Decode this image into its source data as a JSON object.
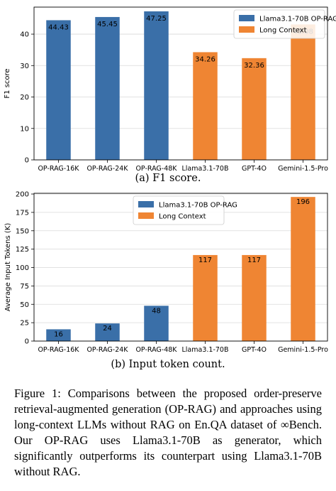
{
  "colors": {
    "rag": "#3a6fa8",
    "long": "#ef8533",
    "grid": "#d9d9d9"
  },
  "chart_data": [
    {
      "type": "bar",
      "categories": [
        "OP-RAG-16K",
        "OP-RAG-24K",
        "OP-RAG-48K",
        "Llama3.1-70B",
        "GPT-4O",
        "Gemini-1.5-Pro"
      ],
      "values": [
        44.43,
        45.45,
        47.25,
        34.26,
        32.36,
        43.08
      ],
      "value_labels": [
        "44.43",
        "45.45",
        "47.25",
        "34.26",
        "32.36",
        "43.08"
      ],
      "bar_series": [
        0,
        0,
        0,
        1,
        1,
        1
      ],
      "series": [
        {
          "name": "Llama3.1-70B OP-RAG"
        },
        {
          "name": "Long Context"
        }
      ],
      "ylabel": "F1 score",
      "ylim": [
        0,
        48.6
      ],
      "yticks": [
        0,
        10,
        20,
        30,
        40
      ],
      "grid": true,
      "legend": "top-right"
    },
    {
      "type": "bar",
      "categories": [
        "OP-RAG-16K",
        "OP-RAG-24K",
        "OP-RAG-48K",
        "Llama3.1-70B",
        "GPT-4O",
        "Gemini-1.5-Pro"
      ],
      "values": [
        16,
        24,
        48,
        117,
        117,
        196
      ],
      "value_labels": [
        "16",
        "24",
        "48",
        "117",
        "117",
        "196"
      ],
      "bar_series": [
        0,
        0,
        0,
        1,
        1,
        1
      ],
      "series": [
        {
          "name": "Llama3.1-70B OP-RAG"
        },
        {
          "name": "Long Context"
        }
      ],
      "ylabel": "Average Input Tokens (K)",
      "ylim": [
        0,
        201
      ],
      "yticks": [
        0,
        25,
        50,
        75,
        100,
        125,
        150,
        175,
        200
      ],
      "grid": true,
      "legend": "top-center"
    }
  ],
  "captions": {
    "sub_a": "(a) F1 score.",
    "sub_b": "(b) Input token count.",
    "figure": "Figure 1: Comparisons between the proposed order-preserve retrieval-augmented generation (OP-RAG) and approaches using long-context LLMs without RAG on En.QA dataset of ∞Bench. Our OP-RAG uses Llama3.1-70B as generator, which significantly outperforms its counterpart using Llama3.1-70B without RAG."
  }
}
